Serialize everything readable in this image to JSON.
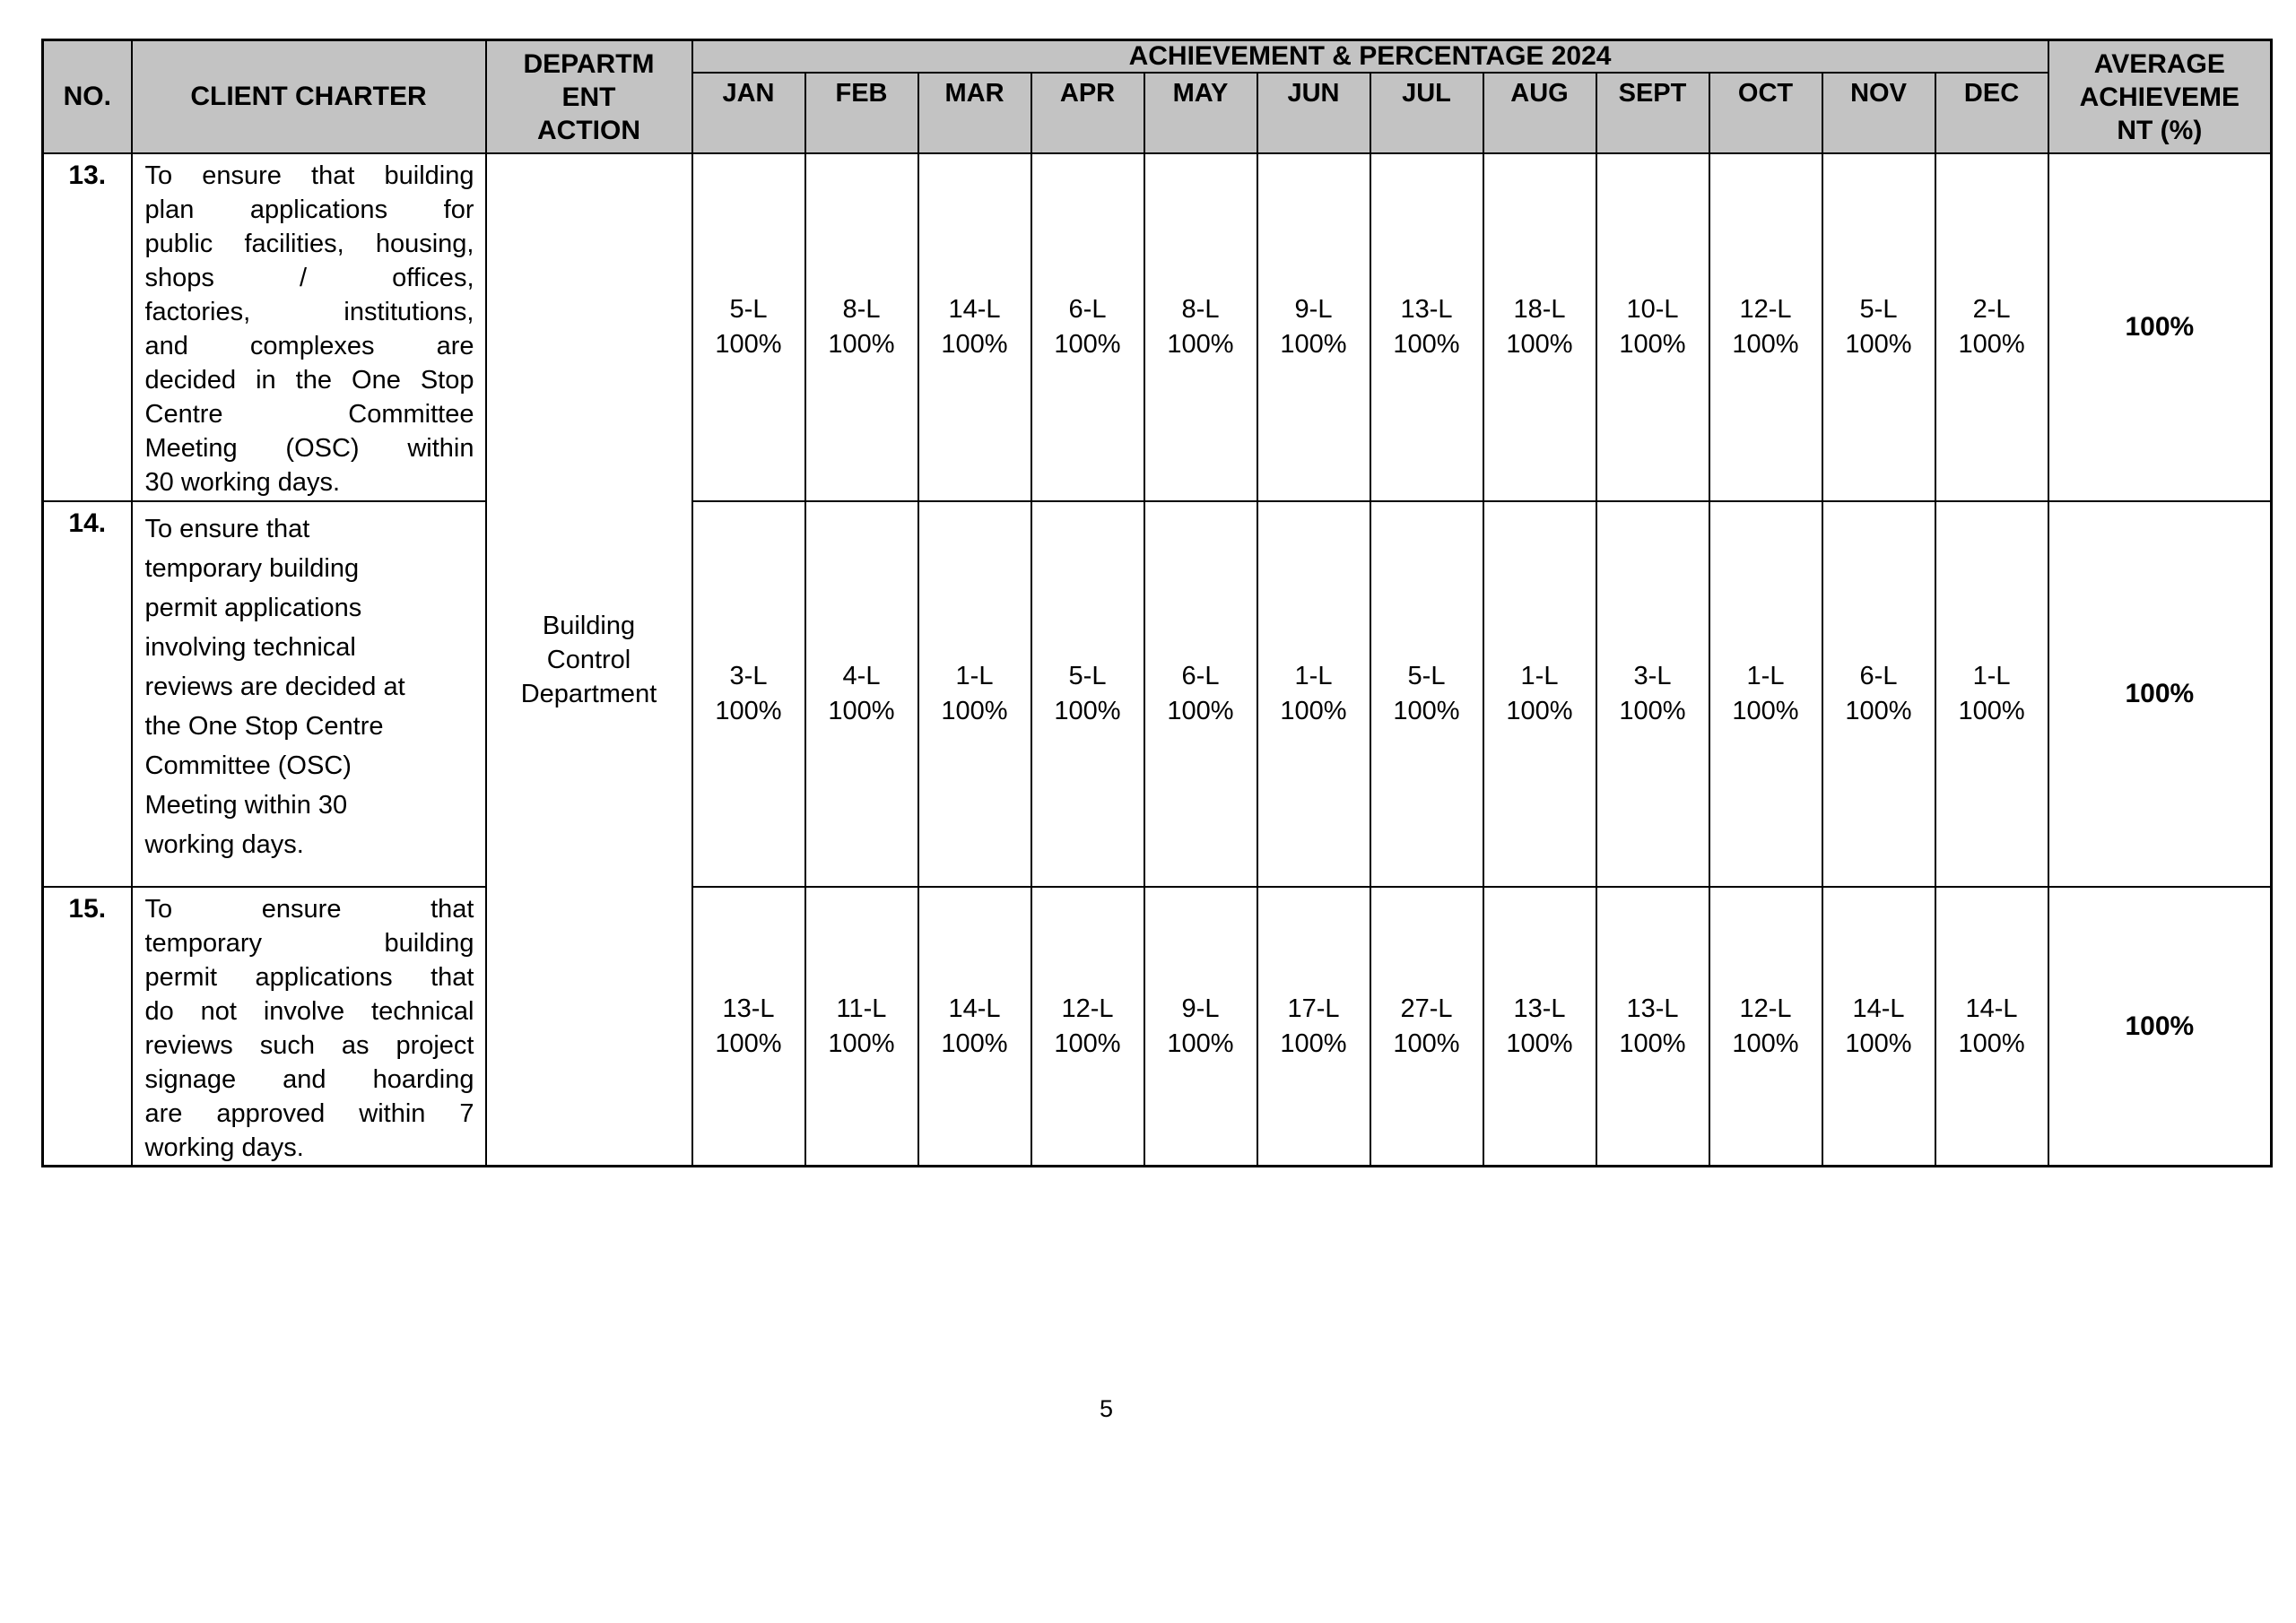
{
  "page": {
    "number": "5"
  },
  "colors": {
    "header_bg": "#c3c3c3",
    "border": "#000000",
    "text": "#000000"
  },
  "table": {
    "headers": {
      "no": "NO.",
      "client_charter": "CLIENT CHARTER",
      "department_action_lines": [
        "DEPARTM",
        "ENT",
        "ACTION"
      ],
      "achievement_band": "ACHIEVEMENT & PERCENTAGE 2024",
      "months": [
        "JAN",
        "FEB",
        "MAR",
        "APR",
        "MAY",
        "JUN",
        "JUL",
        "AUG",
        "SEPT",
        "OCT",
        "NOV",
        "DEC"
      ],
      "average_lines": [
        "AVERAGE",
        "ACHIEVEME",
        "NT (%)"
      ]
    },
    "department_lines": [
      "Building",
      "Control",
      "Department"
    ],
    "rows": [
      {
        "no": "13.",
        "charter_lines": [
          "To ensure that building",
          "plan applications for",
          "public facilities, housing,",
          "shops / offices,",
          "factories, institutions,",
          "and complexes are",
          "decided in the One Stop",
          "Centre Committee",
          "Meeting (OSC) within",
          "30 working days."
        ],
        "monthly": [
          {
            "v": "5-L",
            "p": "100%"
          },
          {
            "v": "8-L",
            "p": "100%"
          },
          {
            "v": "14-L",
            "p": "100%"
          },
          {
            "v": "6-L",
            "p": "100%"
          },
          {
            "v": "8-L",
            "p": "100%"
          },
          {
            "v": "9-L",
            "p": "100%"
          },
          {
            "v": "13-L",
            "p": "100%"
          },
          {
            "v": "18-L",
            "p": "100%"
          },
          {
            "v": "10-L",
            "p": "100%"
          },
          {
            "v": "12-L",
            "p": "100%"
          },
          {
            "v": "5-L",
            "p": "100%"
          },
          {
            "v": "2-L",
            "p": "100%"
          }
        ],
        "average": "100%"
      },
      {
        "no": "14.",
        "charter_lines": [
          "To ensure that",
          "temporary building",
          "permit applications",
          "involving technical",
          "reviews are decided at",
          "the One Stop Centre",
          "Committee (OSC)",
          "Meeting within 30",
          "working days."
        ],
        "monthly": [
          {
            "v": "3-L",
            "p": "100%"
          },
          {
            "v": "4-L",
            "p": "100%"
          },
          {
            "v": "1-L",
            "p": "100%"
          },
          {
            "v": "5-L",
            "p": "100%"
          },
          {
            "v": "6-L",
            "p": "100%"
          },
          {
            "v": "1-L",
            "p": "100%"
          },
          {
            "v": "5-L",
            "p": "100%"
          },
          {
            "v": "1-L",
            "p": "100%"
          },
          {
            "v": "3-L",
            "p": "100%"
          },
          {
            "v": "1-L",
            "p": "100%"
          },
          {
            "v": "6-L",
            "p": "100%"
          },
          {
            "v": "1-L",
            "p": "100%"
          }
        ],
        "average": "100%"
      },
      {
        "no": "15.",
        "charter_lines": [
          "To ensure that",
          "temporary building",
          "permit applications that",
          "do not involve technical",
          "reviews such as project",
          "signage and hoarding",
          "are approved within 7",
          "working days."
        ],
        "monthly": [
          {
            "v": "13-L",
            "p": "100%"
          },
          {
            "v": "11-L",
            "p": "100%"
          },
          {
            "v": "14-L",
            "p": "100%"
          },
          {
            "v": "12-L",
            "p": "100%"
          },
          {
            "v": "9-L",
            "p": "100%"
          },
          {
            "v": "17-L",
            "p": "100%"
          },
          {
            "v": "27-L",
            "p": "100%"
          },
          {
            "v": "13-L",
            "p": "100%"
          },
          {
            "v": "13-L",
            "p": "100%"
          },
          {
            "v": "12-L",
            "p": "100%"
          },
          {
            "v": "14-L",
            "p": "100%"
          },
          {
            "v": "14-L",
            "p": "100%"
          }
        ],
        "average": "100%"
      }
    ]
  }
}
